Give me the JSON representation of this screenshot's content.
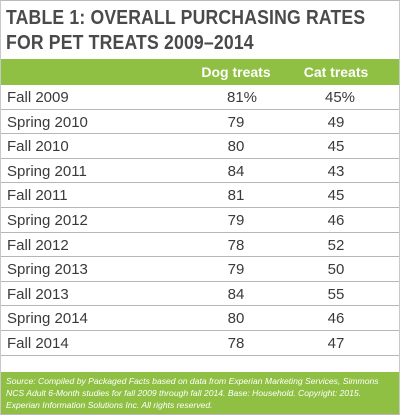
{
  "title": {
    "line1": "TABLE 1: OVERALL PURCHASING RATES",
    "line2": "FOR PET TREATS 2009–2014"
  },
  "header": {
    "period": "",
    "dog": "Dog treats",
    "cat": "Cat treats"
  },
  "rows": [
    {
      "period": "Fall 2009",
      "dog": "81%",
      "cat": "45%"
    },
    {
      "period": "Spring 2010",
      "dog": "79",
      "cat": "49"
    },
    {
      "period": "Fall 2010",
      "dog": "80",
      "cat": "45"
    },
    {
      "period": "Spring 2011",
      "dog": "84",
      "cat": "43"
    },
    {
      "period": "Fall 2011",
      "dog": "81",
      "cat": "45"
    },
    {
      "period": "Spring 2012",
      "dog": "79",
      "cat": "46"
    },
    {
      "period": "Fall 2012",
      "dog": "78",
      "cat": "52"
    },
    {
      "period": "Spring 2013",
      "dog": "79",
      "cat": "50"
    },
    {
      "period": "Fall 2013",
      "dog": "84",
      "cat": "55"
    },
    {
      "period": "Spring 2014",
      "dog": "80",
      "cat": "46"
    },
    {
      "period": "Fall 2014",
      "dog": "78",
      "cat": "47"
    }
  ],
  "source": "Source: Compiled by Packaged Facts based on data from Experian Marketing Services, Simmons NCS Adult 6-Month studies for fall 2009 through fall 2014. Base: Household. Copyright: 2015. Experian Information Solutions Inc. All rights reserved.",
  "colors": {
    "accent": "#8fc043",
    "title_text": "#4a4a4a",
    "body_text": "#3a3a3a"
  }
}
